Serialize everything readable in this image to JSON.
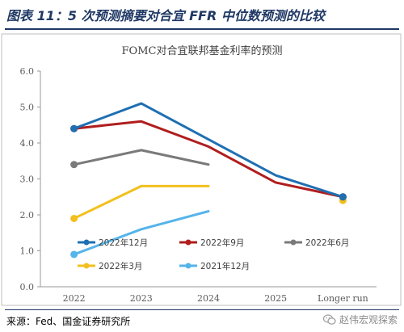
{
  "header": {
    "title": "图表 11：5 次预测摘要对合宜 FFR 中位数预测的比较"
  },
  "footer": {
    "source": "来源：Fed、国金证券研究所",
    "brand": "赵伟宏观探索",
    "brand_icon": "wechat-icon"
  },
  "chart_data": {
    "type": "line",
    "title": "FOMC对合宜联邦基金利率的预测",
    "categories": [
      "2022",
      "2023",
      "2024",
      "2025",
      "Longer run"
    ],
    "ylim": [
      0,
      6
    ],
    "yticks": [
      "0.0",
      "1.0",
      "2.0",
      "3.0",
      "4.0",
      "5.0",
      "6.0"
    ],
    "grid": false,
    "legend": "inside-bottom",
    "series": [
      {
        "name": "2022年12月",
        "color": "#1f6fb2",
        "values": [
          4.4,
          5.1,
          4.1,
          3.1,
          2.5
        ]
      },
      {
        "name": "2022年9月",
        "color": "#b01e1e",
        "values": [
          4.4,
          4.6,
          3.9,
          2.9,
          2.5
        ]
      },
      {
        "name": "2022年6月",
        "color": "#7a7a7a",
        "values": [
          3.4,
          3.8,
          3.4,
          null,
          2.5
        ]
      },
      {
        "name": "2022年3月",
        "color": "#f2c01e",
        "values": [
          1.9,
          2.8,
          2.8,
          null,
          2.4
        ]
      },
      {
        "name": "2021年12月",
        "color": "#55b4ea",
        "values": [
          0.9,
          1.6,
          2.1,
          null,
          2.5
        ]
      }
    ]
  }
}
